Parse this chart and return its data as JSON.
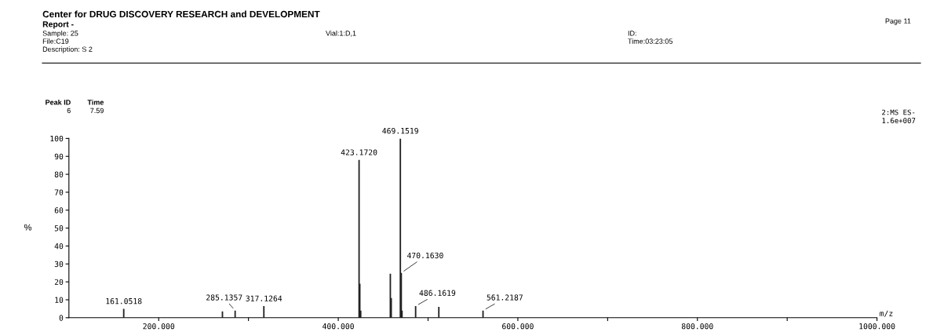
{
  "chart_data": {
    "type": "bar",
    "title": "Center for DRUG DISCOVERY RESEARCH and DEVELOPMENT",
    "subtitle": "Report -",
    "xlabel": "m/z",
    "ylabel": "%",
    "x": [
      161.0518,
      271,
      285.1357,
      317.1264,
      423.172,
      424,
      425,
      458,
      459,
      469.1519,
      470.163,
      471,
      486.1619,
      512,
      561.2187
    ],
    "series": [
      {
        "color": "#222222",
        "values": [
          5,
          3.5,
          4,
          6.5,
          88,
          19,
          4,
          24.5,
          11,
          100,
          25,
          4,
          6.5,
          6,
          4
        ]
      }
    ],
    "xlim": [
      100,
      1000
    ],
    "xticks": [
      {
        "value": 200,
        "label": "200.000"
      },
      {
        "value": 300,
        "label": null
      },
      {
        "value": 400,
        "label": "400.000"
      },
      {
        "value": 500,
        "label": null
      },
      {
        "value": 600,
        "label": "600.000"
      },
      {
        "value": 700,
        "label": null
      },
      {
        "value": 800,
        "label": "800.000"
      },
      {
        "value": 900,
        "label": null
      },
      {
        "value": 1000,
        "label": "1000.000"
      }
    ],
    "ylim": [
      0,
      100
    ],
    "yticks": [
      0,
      10,
      20,
      30,
      40,
      50,
      60,
      70,
      80,
      90,
      100
    ],
    "grid": false,
    "annotations": [
      "Sample: 25",
      "File:C19",
      "Description: S 2",
      "Vial:1:D,1",
      "ID:",
      "Time:03:23:05",
      "Page 11",
      "Peak ID",
      "Time",
      "6",
      "7.59",
      "2:MS ES-",
      "1.6e+007",
      {
        "text": "161.0518",
        "x": 161.0518,
        "y": 5
      },
      {
        "text": "285.1357",
        "x": 285.1357,
        "y": 4
      },
      {
        "text": "317.1264",
        "x": 317.1264,
        "y": 6.5
      },
      {
        "text": "423.1720",
        "x": 423.172,
        "y": 88
      },
      {
        "text": "469.1519",
        "x": 469.1519,
        "y": 100
      },
      {
        "text": "470.1630",
        "x": 470.163,
        "y": 25
      },
      {
        "text": "486.1619",
        "x": 486.1619,
        "y": 6.5
      },
      {
        "text": "561.2187",
        "x": 561.2187,
        "y": 4
      }
    ]
  }
}
